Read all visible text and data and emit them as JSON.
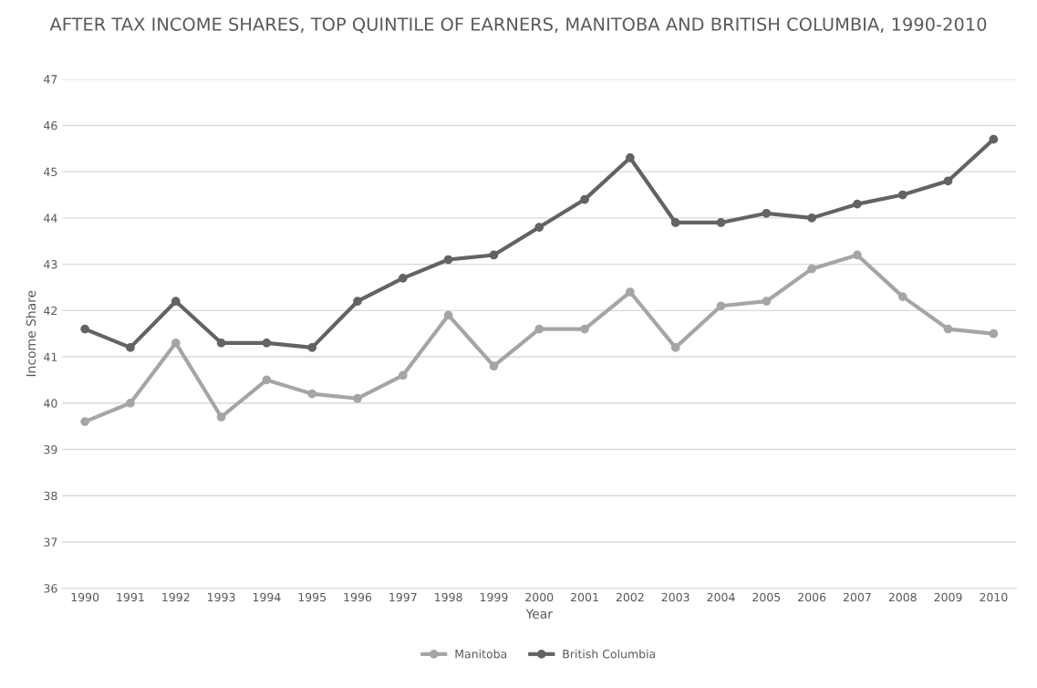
{
  "chart_data": {
    "type": "line",
    "title": "AFTER TAX INCOME SHARES, TOP QUINTILE OF EARNERS, MANITOBA AND BRITISH COLUMBIA, 1990-2010",
    "xlabel": "Year",
    "ylabel": "Income Share",
    "categories": [
      "1990",
      "1991",
      "1992",
      "1993",
      "1994",
      "1995",
      "1996",
      "1997",
      "1998",
      "1999",
      "2000",
      "2001",
      "2002",
      "2003",
      "2004",
      "2005",
      "2006",
      "2007",
      "2008",
      "2009",
      "2010"
    ],
    "series": [
      {
        "name": "Manitoba",
        "color": "#a5a5a5",
        "values": [
          39.6,
          40.0,
          41.3,
          39.7,
          40.5,
          40.2,
          40.1,
          40.6,
          41.9,
          40.8,
          41.6,
          41.6,
          42.4,
          41.2,
          42.1,
          42.2,
          42.9,
          43.2,
          42.3,
          41.6,
          41.5
        ]
      },
      {
        "name": "British Columbia",
        "color": "#636363",
        "values": [
          41.6,
          41.2,
          42.2,
          41.3,
          41.3,
          41.2,
          42.2,
          42.7,
          43.1,
          43.2,
          43.8,
          44.4,
          45.3,
          43.9,
          43.9,
          44.1,
          44.0,
          44.3,
          44.5,
          44.8,
          45.7
        ]
      }
    ],
    "ylim": [
      36,
      47
    ],
    "yticks": [
      36,
      37,
      38,
      39,
      40,
      41,
      42,
      43,
      44,
      45,
      46,
      47
    ],
    "grid": "y",
    "legend": "bottom",
    "marker": "circle",
    "line_style": "solid"
  }
}
